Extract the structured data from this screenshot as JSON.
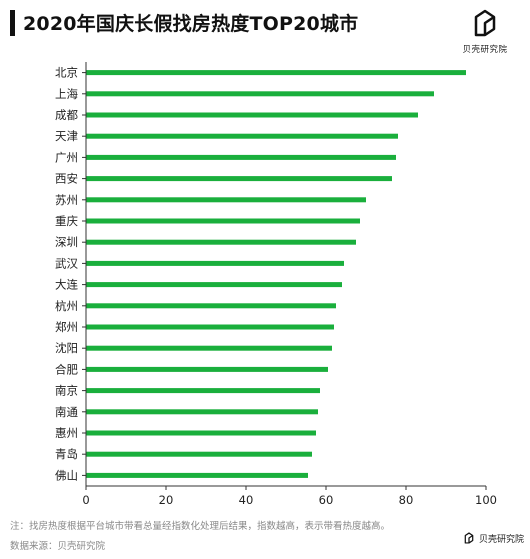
{
  "header": {
    "title": "2020年国庆长假找房热度TOP20城市"
  },
  "brand": {
    "name": "贝壳研究院"
  },
  "footer": {
    "note": "注：找房热度根据平台城市带看总量经指数化处理后结果，指数越高，表示带看热度越高。",
    "source": "数据来源：贝壳研究院"
  },
  "colors": {
    "bar": "#1aaf3c",
    "axis": "#333333"
  },
  "chart_data": {
    "type": "bar",
    "orientation": "horizontal",
    "title": "2020年国庆长假找房热度TOP20城市",
    "categories": [
      "北京",
      "上海",
      "成都",
      "天津",
      "广州",
      "西安",
      "苏州",
      "重庆",
      "深圳",
      "武汉",
      "大连",
      "杭州",
      "郑州",
      "沈阳",
      "合肥",
      "南京",
      "南通",
      "惠州",
      "青岛",
      "佛山"
    ],
    "values": [
      95,
      87,
      83,
      78,
      77.5,
      76.5,
      70,
      68.5,
      67.5,
      64.5,
      64,
      62.5,
      62,
      61.5,
      60.5,
      58.5,
      58,
      57.5,
      56.5,
      55.5
    ],
    "xlim": [
      0,
      100
    ],
    "xticks": [
      "0",
      "20",
      "40",
      "60",
      "80",
      "100"
    ],
    "xlabel": "",
    "ylabel": "",
    "grid": false
  }
}
